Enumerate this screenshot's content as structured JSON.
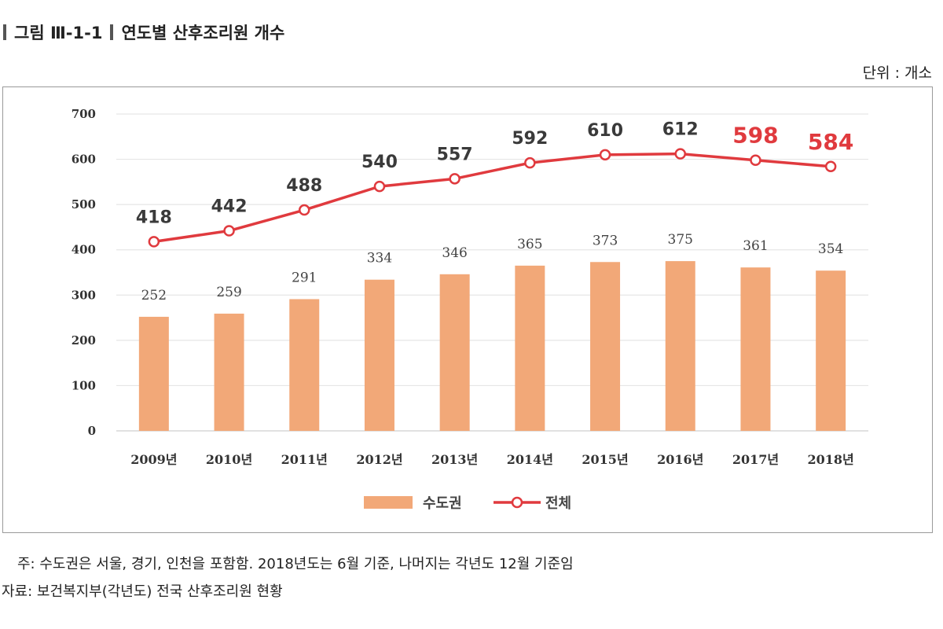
{
  "header": {
    "figure_number": "그림 Ⅲ-1-1",
    "title": "연도별 산후조리원 개수",
    "unit": "단위 : 개소"
  },
  "footer": {
    "note": "주: 수도권은 서울, 경기, 인천을 포함함. 2018년도는 6월 기준, 나머지는 각년도 12월 기준임",
    "source": "자료: 보건복지부(각년도) 전국 산후조리원 현황"
  },
  "colors": {
    "bar": "#F2A878",
    "line": "#E03A3E",
    "grid": "#E6E6E6",
    "highlight": "#E03A3E"
  },
  "chart_data": {
    "type": "bar+line",
    "categories": [
      "2009년",
      "2010년",
      "2011년",
      "2012년",
      "2013년",
      "2014년",
      "2015년",
      "2016년",
      "2017년",
      "2018년"
    ],
    "series": [
      {
        "name": "수도권",
        "type": "bar",
        "values": [
          252,
          259,
          291,
          334,
          346,
          365,
          373,
          375,
          361,
          354
        ]
      },
      {
        "name": "전체",
        "type": "line",
        "values": [
          418,
          442,
          488,
          540,
          557,
          592,
          610,
          612,
          598,
          584
        ]
      }
    ],
    "highlighted_line_labels": [
      "2017년",
      "2018년"
    ],
    "y_ticks": [
      "0",
      "100",
      "200",
      "300",
      "400",
      "500",
      "600",
      "700"
    ],
    "ylim": [
      0,
      700
    ],
    "grid": true,
    "legend_position": "bottom-center",
    "title": "연도별 산후조리원 개수",
    "xlabel": "",
    "ylabel": ""
  }
}
